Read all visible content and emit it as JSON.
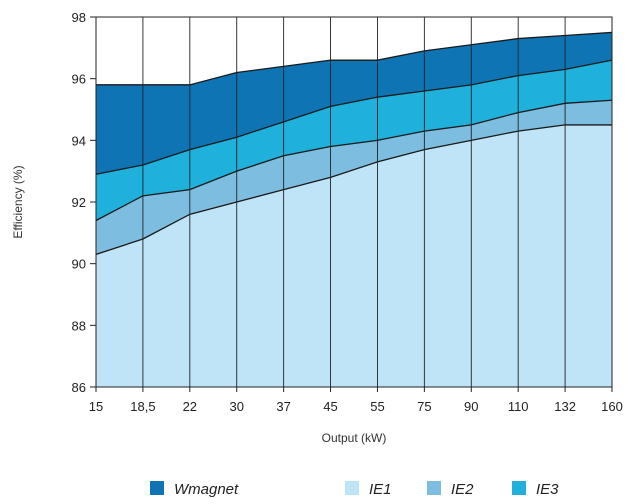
{
  "chart_data": {
    "type": "area",
    "categories": [
      "15",
      "18,5",
      "22",
      "30",
      "37",
      "45",
      "55",
      "75",
      "90",
      "110",
      "132",
      "160"
    ],
    "series": [
      {
        "name": "IE1",
        "values": [
          90.3,
          90.8,
          91.6,
          92.0,
          92.4,
          92.8,
          93.3,
          93.7,
          94.0,
          94.3,
          94.5,
          94.5
        ],
        "color": "#bfe3f7"
      },
      {
        "name": "IE2",
        "values": [
          91.4,
          92.2,
          92.4,
          93.0,
          93.5,
          93.8,
          94.0,
          94.3,
          94.5,
          94.9,
          95.2,
          95.3
        ],
        "color": "#7dbde0"
      },
      {
        "name": "IE3",
        "values": [
          92.9,
          93.2,
          93.7,
          94.1,
          94.6,
          95.1,
          95.4,
          95.6,
          95.8,
          96.1,
          96.3,
          96.6
        ],
        "color": "#1fb0db"
      },
      {
        "name": "Wmagnet",
        "values": [
          95.8,
          95.8,
          95.8,
          96.2,
          96.4,
          96.6,
          96.6,
          96.9,
          97.1,
          97.3,
          97.4,
          97.5
        ],
        "color": "#0f74b4"
      }
    ],
    "xlabel": "Output (kW)",
    "ylabel": "Efficiency (%)",
    "ylim": [
      86,
      98
    ],
    "yticks": [
      86,
      88,
      90,
      92,
      94,
      96,
      98
    ],
    "grid": "vertical",
    "legend_position": "bottom",
    "legend_order": [
      "Wmagnet",
      "IE1",
      "IE2",
      "IE3"
    ]
  }
}
